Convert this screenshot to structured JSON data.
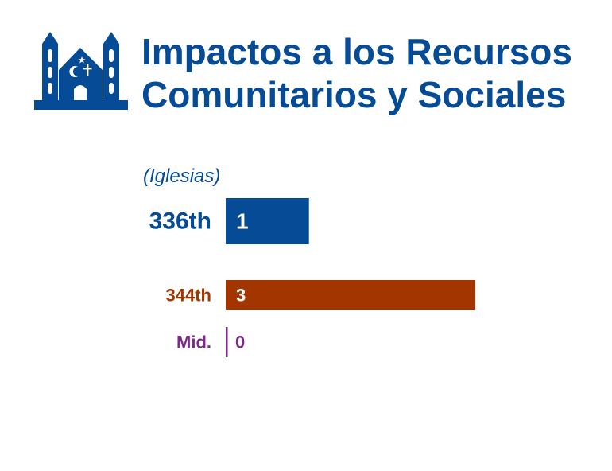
{
  "title": "Impactos a los Recursos Comunitarios y Sociales",
  "subtitle": "(Iglesias)",
  "icon": "church-icon",
  "chart_data": {
    "type": "bar",
    "orientation": "horizontal",
    "categories": [
      "336th",
      "344th",
      "Mid."
    ],
    "values": [
      1,
      3,
      0
    ],
    "data_labels": [
      "1",
      "3",
      "0"
    ],
    "colors": [
      "#064b96",
      "#a33500",
      "#7d2a8a"
    ],
    "xlim": [
      0,
      3
    ],
    "grid": false,
    "legend": "none"
  }
}
